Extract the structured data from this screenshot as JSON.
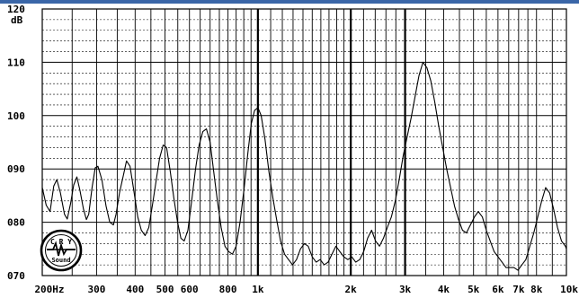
{
  "chart_data": {
    "type": "line",
    "xscale": "log",
    "xlim": [
      200,
      10000
    ],
    "ylim": [
      70,
      120
    ],
    "ylabel": "dB",
    "grid": true,
    "y_ticks": [
      {
        "value": 120,
        "label": "120"
      },
      {
        "value": 110,
        "label": "110"
      },
      {
        "value": 100,
        "label": "100"
      },
      {
        "value": 90,
        "label": "090"
      },
      {
        "value": 80,
        "label": "080"
      },
      {
        "value": 70,
        "label": "070"
      }
    ],
    "x_ticks": [
      {
        "value": 200,
        "label": "200Hz"
      },
      {
        "value": 300,
        "label": "300"
      },
      {
        "value": 400,
        "label": "400"
      },
      {
        "value": 500,
        "label": "500"
      },
      {
        "value": 600,
        "label": "600"
      },
      {
        "value": 800,
        "label": "800"
      },
      {
        "value": 1000,
        "label": "1k"
      },
      {
        "value": 2000,
        "label": "2k"
      },
      {
        "value": 3000,
        "label": "3k"
      },
      {
        "value": 4000,
        "label": "4k"
      },
      {
        "value": 5000,
        "label": "5k"
      },
      {
        "value": 6000,
        "label": "6k"
      },
      {
        "value": 7000,
        "label": "7k"
      },
      {
        "value": 8000,
        "label": "8k"
      },
      {
        "value": 10000,
        "label": "10k"
      }
    ],
    "x_gridlines": [
      200,
      250,
      300,
      350,
      400,
      450,
      500,
      550,
      600,
      650,
      700,
      750,
      800,
      850,
      900,
      950,
      1000,
      1100,
      1200,
      1300,
      1400,
      1500,
      1600,
      1700,
      1800,
      1900,
      2000,
      2200,
      2400,
      2600,
      2800,
      3000,
      3500,
      4000,
      4500,
      5000,
      5500,
      6000,
      6500,
      7000,
      7500,
      8000,
      9000,
      10000
    ],
    "x_major_gridlines": [
      1000,
      2000,
      3000
    ],
    "series": [
      {
        "color": "#000000",
        "points": [
          [
            200,
            86.5
          ],
          [
            206,
            83.2
          ],
          [
            212,
            82.0
          ],
          [
            218,
            86.8
          ],
          [
            223,
            88.0
          ],
          [
            229,
            85.5
          ],
          [
            236,
            81.5
          ],
          [
            241,
            80.6
          ],
          [
            247,
            83.5
          ],
          [
            253,
            87.0
          ],
          [
            259,
            88.5
          ],
          [
            265,
            86.0
          ],
          [
            272,
            82.5
          ],
          [
            278,
            80.5
          ],
          [
            283,
            81.5
          ],
          [
            290,
            86.5
          ],
          [
            297,
            90.2
          ],
          [
            303,
            90.5
          ],
          [
            312,
            88.0
          ],
          [
            322,
            83.0
          ],
          [
            331,
            80.0
          ],
          [
            340,
            79.5
          ],
          [
            347,
            81.5
          ],
          [
            356,
            85.5
          ],
          [
            367,
            89.0
          ],
          [
            375,
            91.5
          ],
          [
            385,
            90.5
          ],
          [
            396,
            86.0
          ],
          [
            408,
            81.0
          ],
          [
            419,
            78.5
          ],
          [
            431,
            77.5
          ],
          [
            443,
            79.0
          ],
          [
            456,
            83.5
          ],
          [
            470,
            88.5
          ],
          [
            480,
            92.0
          ],
          [
            493,
            94.5
          ],
          [
            506,
            94.0
          ],
          [
            520,
            89.5
          ],
          [
            534,
            84.5
          ],
          [
            549,
            80.0
          ],
          [
            563,
            77.0
          ],
          [
            577,
            76.5
          ],
          [
            593,
            78.5
          ],
          [
            610,
            84.0
          ],
          [
            628,
            90.0
          ],
          [
            645,
            94.5
          ],
          [
            663,
            97.0
          ],
          [
            681,
            97.5
          ],
          [
            700,
            95.0
          ],
          [
            719,
            89.5
          ],
          [
            739,
            84.0
          ],
          [
            760,
            79.0
          ],
          [
            782,
            75.5
          ],
          [
            804,
            74.5
          ],
          [
            827,
            74.0
          ],
          [
            850,
            75.5
          ],
          [
            875,
            80.0
          ],
          [
            903,
            86.5
          ],
          [
            928,
            93.0
          ],
          [
            952,
            98.5
          ],
          [
            976,
            101.0
          ],
          [
            1000,
            101.5
          ],
          [
            1025,
            100.0
          ],
          [
            1055,
            95.5
          ],
          [
            1086,
            89.5
          ],
          [
            1119,
            84.5
          ],
          [
            1150,
            80.5
          ],
          [
            1184,
            76.5
          ],
          [
            1220,
            74.0
          ],
          [
            1257,
            73.0
          ],
          [
            1295,
            72.0
          ],
          [
            1334,
            73.0
          ],
          [
            1374,
            75.0
          ],
          [
            1414,
            76.0
          ],
          [
            1456,
            75.5
          ],
          [
            1500,
            73.5
          ],
          [
            1545,
            72.5
          ],
          [
            1591,
            73.0
          ],
          [
            1640,
            72.0
          ],
          [
            1688,
            72.5
          ],
          [
            1738,
            74.0
          ],
          [
            1790,
            75.5
          ],
          [
            1844,
            74.5
          ],
          [
            1900,
            73.5
          ],
          [
            1957,
            73.0
          ],
          [
            2015,
            73.5
          ],
          [
            2076,
            72.5
          ],
          [
            2138,
            73.0
          ],
          [
            2202,
            74.5
          ],
          [
            2268,
            77.0
          ],
          [
            2336,
            78.5
          ],
          [
            2406,
            76.5
          ],
          [
            2478,
            75.5
          ],
          [
            2552,
            77.0
          ],
          [
            2628,
            79.0
          ],
          [
            2707,
            81.0
          ],
          [
            2789,
            84.0
          ],
          [
            2871,
            88.0
          ],
          [
            2958,
            92.5
          ],
          [
            3046,
            96.0
          ],
          [
            3137,
            99.5
          ],
          [
            3231,
            103.5
          ],
          [
            3328,
            107.5
          ],
          [
            3427,
            110.0
          ],
          [
            3530,
            109.0
          ],
          [
            3636,
            106.5
          ],
          [
            3745,
            102.5
          ],
          [
            3857,
            98.0
          ],
          [
            3973,
            94.0
          ],
          [
            4092,
            90.0
          ],
          [
            4214,
            86.5
          ],
          [
            4341,
            83.0
          ],
          [
            4471,
            80.5
          ],
          [
            4605,
            78.5
          ],
          [
            4743,
            78.0
          ],
          [
            4885,
            79.5
          ],
          [
            5032,
            81.0
          ],
          [
            5182,
            82.0
          ],
          [
            5338,
            81.0
          ],
          [
            5498,
            78.5
          ],
          [
            5662,
            76.5
          ],
          [
            5832,
            74.5
          ],
          [
            6007,
            73.5
          ],
          [
            6187,
            72.5
          ],
          [
            6372,
            71.5
          ],
          [
            6564,
            71.5
          ],
          [
            6760,
            71.5
          ],
          [
            6963,
            71.0
          ],
          [
            7172,
            72.0
          ],
          [
            7387,
            73.0
          ],
          [
            7609,
            75.5
          ],
          [
            7837,
            78.0
          ],
          [
            8072,
            81.0
          ],
          [
            8314,
            84.0
          ],
          [
            8564,
            86.5
          ],
          [
            8821,
            85.5
          ],
          [
            9086,
            82.5
          ],
          [
            9358,
            79.0
          ],
          [
            9638,
            76.5
          ],
          [
            9928,
            75.5
          ],
          [
            10000,
            75.0
          ]
        ]
      }
    ]
  },
  "logo": {
    "top_text": "C R Y",
    "bottom_text": "Sound"
  }
}
